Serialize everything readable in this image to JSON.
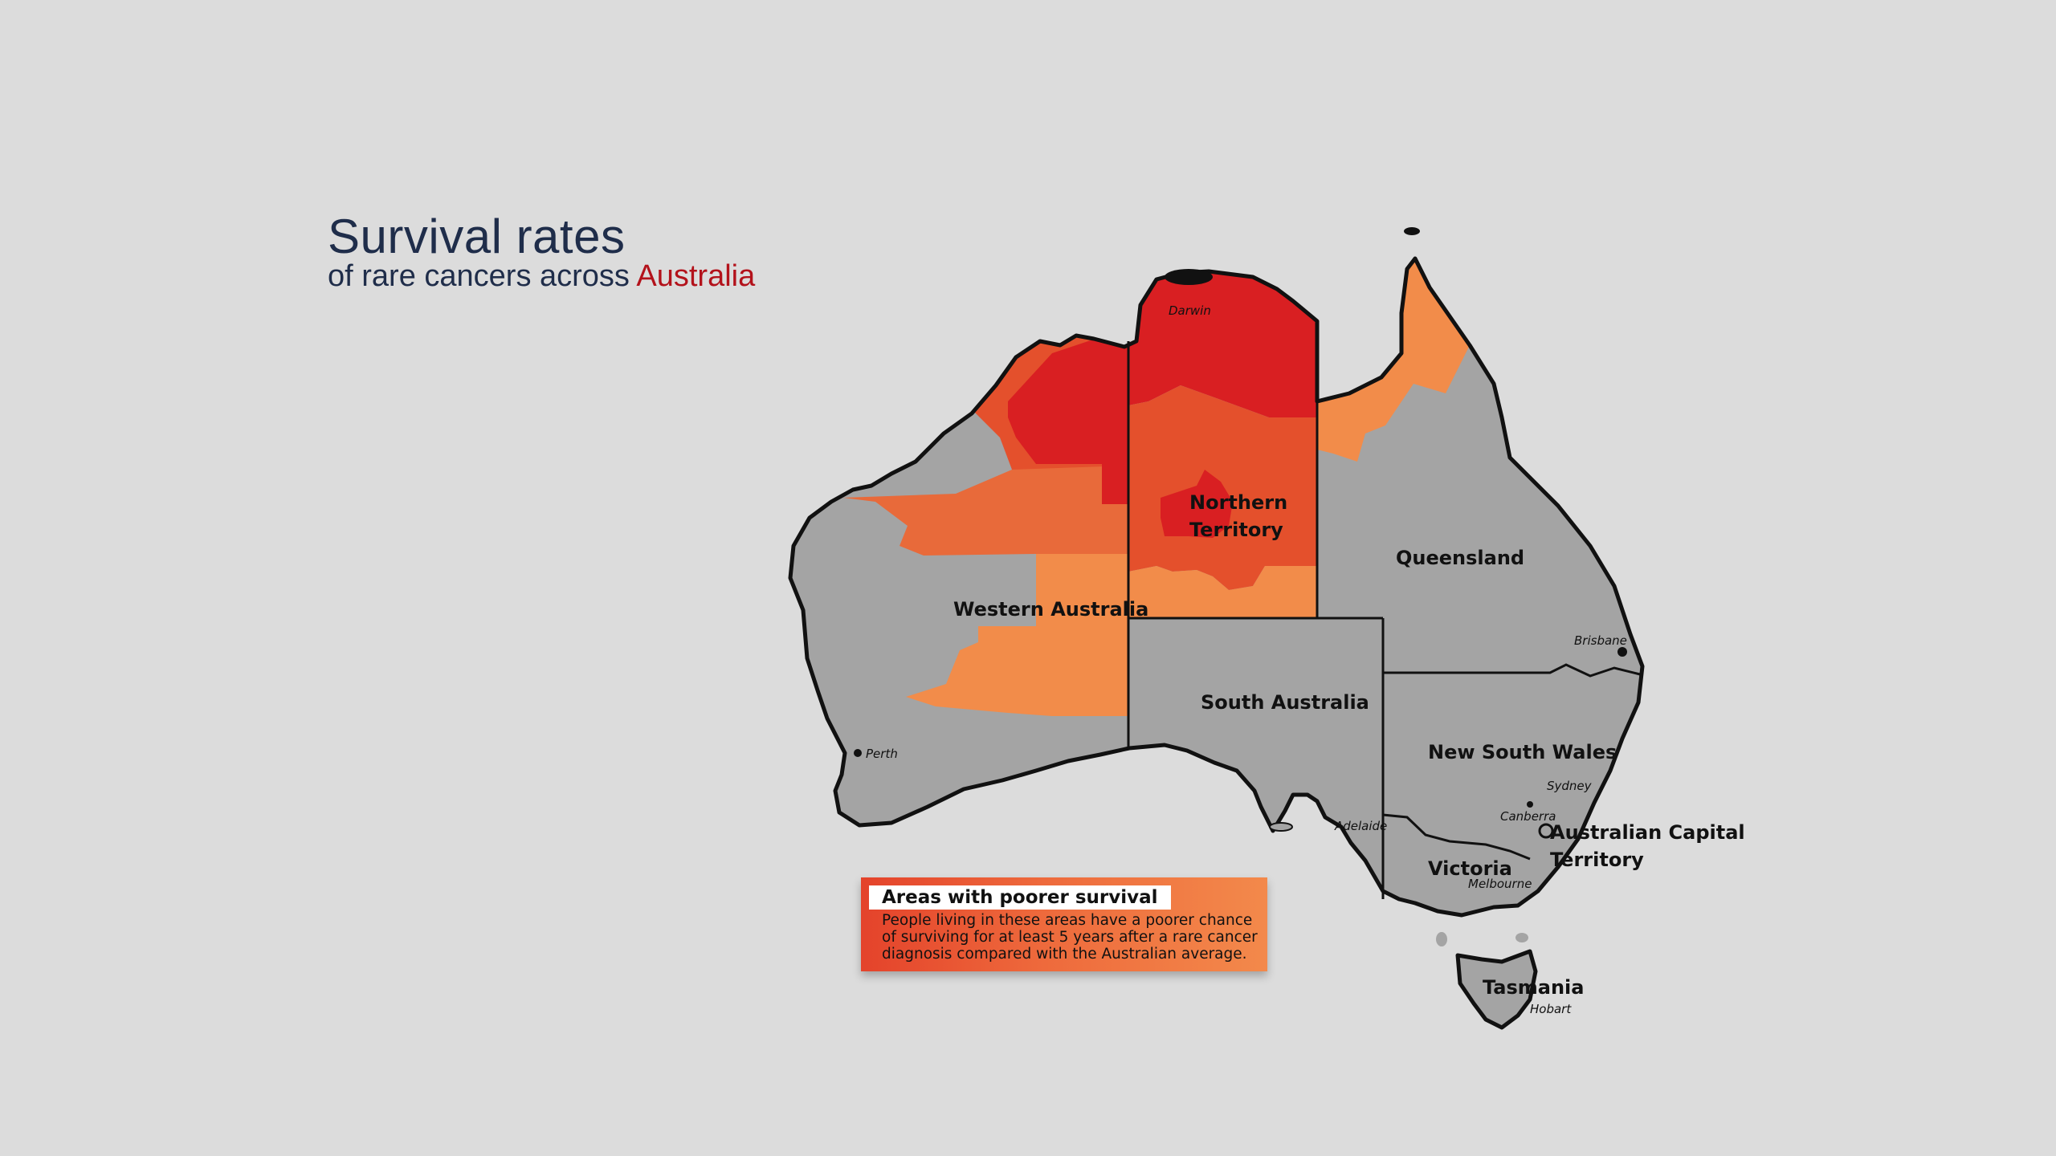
{
  "title": {
    "main": "Survival rates",
    "sub_prefix": "of rare cancers across ",
    "sub_accent": "Australia"
  },
  "colors": {
    "background": "#dcdcdc",
    "land_default": "#a4a4a4",
    "poorer_light": "#f28c4a",
    "poorer_medium": "#e55e33",
    "poorer_dark": "#d91f22",
    "title_navy": "#1f2d4a",
    "title_accent": "#b3121b"
  },
  "map": {
    "states": [
      {
        "id": "wa",
        "label": "Western Australia"
      },
      {
        "id": "nt",
        "label_line1": "Northern",
        "label_line2": "Territory"
      },
      {
        "id": "qld",
        "label": "Queensland"
      },
      {
        "id": "sa",
        "label": "South Australia"
      },
      {
        "id": "nsw",
        "label": "New South Wales"
      },
      {
        "id": "act",
        "label_line1": "Australian Capital",
        "label_line2": "Territory"
      },
      {
        "id": "vic",
        "label": "Victoria"
      },
      {
        "id": "tas",
        "label": "Tasmania"
      }
    ],
    "cities": [
      {
        "id": "darwin",
        "label": "Darwin"
      },
      {
        "id": "perth",
        "label": "Perth"
      },
      {
        "id": "adelaide",
        "label": "Adelaide"
      },
      {
        "id": "brisbane",
        "label": "Brisbane"
      },
      {
        "id": "sydney",
        "label": "Sydney"
      },
      {
        "id": "canberra",
        "label": "Canberra"
      },
      {
        "id": "melbourne",
        "label": "Melbourne"
      },
      {
        "id": "hobart",
        "label": "Hobart"
      }
    ]
  },
  "legend": {
    "heading": "Areas with poorer survival",
    "body": "People living in these areas have a poorer chance of surviving for at least 5 years after a rare cancer diagnosis compared with the Australian average."
  }
}
